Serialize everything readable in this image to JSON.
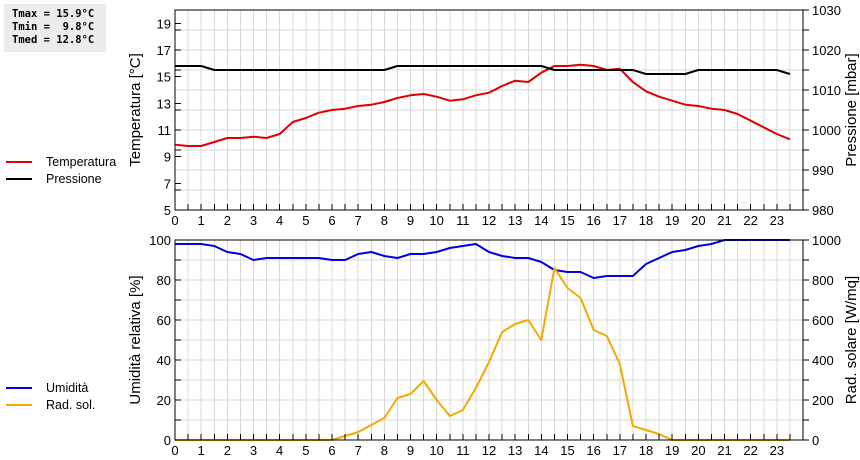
{
  "stats": {
    "lines": [
      "Tmax = 15.9°C",
      "Tmin =  9.8°C",
      "Tmed = 12.8°C"
    ]
  },
  "colors": {
    "temperature": "#e00000",
    "pressure": "#000000",
    "humidity": "#0000e0",
    "radiation": "#f5a800",
    "grid": "#d8d8d8"
  },
  "chart_data": [
    {
      "type": "line",
      "title": "",
      "xlabel": "",
      "ylabel": "Temperatura [°C]",
      "y2label": "Pressione [mbar]",
      "xlim": [
        0,
        24
      ],
      "ylim": [
        5,
        20
      ],
      "y2lim": [
        980,
        1030
      ],
      "grid": true,
      "legend_position": "left",
      "x_ticks": [
        "0",
        "1",
        "2",
        "3",
        "4",
        "5",
        "6",
        "7",
        "8",
        "9",
        "10",
        "11",
        "12",
        "13",
        "14",
        "15",
        "16",
        "17",
        "18",
        "19",
        "20",
        "21",
        "22",
        "23"
      ],
      "y_ticks": [
        "5",
        "7",
        "9",
        "11",
        "13",
        "15",
        "17",
        "19"
      ],
      "y2_ticks": [
        "980",
        "990",
        "1000",
        "1010",
        "1020",
        "1030"
      ],
      "x": [
        0,
        0.5,
        1,
        1.5,
        2,
        2.5,
        3,
        3.5,
        4,
        4.5,
        5,
        5.5,
        6,
        6.5,
        7,
        7.5,
        8,
        8.5,
        9,
        9.5,
        10,
        10.5,
        11,
        11.5,
        12,
        12.5,
        13,
        13.5,
        14,
        14.5,
        15,
        15.5,
        16,
        16.5,
        17,
        17.5,
        18,
        18.5,
        19,
        19.5,
        20,
        20.5,
        21,
        21.5,
        22,
        22.5,
        23,
        23.5
      ],
      "series": [
        {
          "name": "Temperatura",
          "axis": "left",
          "color": "#e00000",
          "values": [
            9.9,
            9.8,
            9.8,
            10.1,
            10.4,
            10.4,
            10.5,
            10.4,
            10.7,
            11.6,
            11.9,
            12.3,
            12.5,
            12.6,
            12.8,
            12.9,
            13.1,
            13.4,
            13.6,
            13.7,
            13.5,
            13.2,
            13.3,
            13.6,
            13.8,
            14.3,
            14.7,
            14.6,
            15.3,
            15.8,
            15.8,
            15.9,
            15.8,
            15.5,
            15.6,
            14.6,
            13.9,
            13.5,
            13.2,
            12.9,
            12.8,
            12.6,
            12.5,
            12.2,
            11.7,
            11.2,
            10.7,
            10.3
          ]
        },
        {
          "name": "Pressione",
          "axis": "right",
          "color": "#000000",
          "values": [
            1016,
            1016,
            1016,
            1015,
            1015,
            1015,
            1015,
            1015,
            1015,
            1015,
            1015,
            1015,
            1015,
            1015,
            1015,
            1015,
            1015,
            1016,
            1016,
            1016,
            1016,
            1016,
            1016,
            1016,
            1016,
            1016,
            1016,
            1016,
            1016,
            1015,
            1015,
            1015,
            1015,
            1015,
            1015,
            1015,
            1014,
            1014,
            1014,
            1014,
            1015,
            1015,
            1015,
            1015,
            1015,
            1015,
            1015,
            1014
          ]
        }
      ]
    },
    {
      "type": "line",
      "title": "",
      "xlabel": "",
      "ylabel": "Umidità relativa [%]",
      "y2label": "Rad. solare [W/mq]",
      "xlim": [
        0,
        24
      ],
      "ylim": [
        0,
        100
      ],
      "y2lim": [
        0,
        1000
      ],
      "grid": true,
      "legend_position": "left",
      "x_ticks": [
        "0",
        "1",
        "2",
        "3",
        "4",
        "5",
        "6",
        "7",
        "8",
        "9",
        "10",
        "11",
        "12",
        "13",
        "14",
        "15",
        "16",
        "17",
        "18",
        "19",
        "20",
        "21",
        "22",
        "23"
      ],
      "y_ticks": [
        "0",
        "20",
        "40",
        "60",
        "80",
        "100"
      ],
      "y2_ticks": [
        "0",
        "200",
        "400",
        "600",
        "800",
        "1000"
      ],
      "x": [
        0,
        0.5,
        1,
        1.5,
        2,
        2.5,
        3,
        3.5,
        4,
        4.5,
        5,
        5.5,
        6,
        6.5,
        7,
        7.5,
        8,
        8.5,
        9,
        9.5,
        10,
        10.5,
        11,
        11.5,
        12,
        12.5,
        13,
        13.5,
        14,
        14.5,
        15,
        15.5,
        16,
        16.5,
        17,
        17.5,
        18,
        18.5,
        19,
        19.5,
        20,
        20.5,
        21,
        21.5,
        22,
        22.5,
        23,
        23.5
      ],
      "series": [
        {
          "name": "Umidità",
          "axis": "left",
          "color": "#0000e0",
          "values": [
            98,
            98,
            98,
            97,
            94,
            93,
            90,
            91,
            91,
            91,
            91,
            91,
            90,
            90,
            93,
            94,
            92,
            91,
            93,
            93,
            94,
            96,
            97,
            98,
            94,
            92,
            91,
            91,
            89,
            85,
            84,
            84,
            81,
            82,
            82,
            82,
            88,
            91,
            94,
            95,
            97,
            98,
            100,
            100,
            100,
            100,
            100,
            100
          ]
        },
        {
          "name": "Rad. sol.",
          "axis": "right",
          "color": "#f5a800",
          "values": [
            0,
            0,
            0,
            0,
            0,
            0,
            0,
            0,
            0,
            0,
            0,
            0,
            0,
            20,
            40,
            75,
            110,
            210,
            230,
            295,
            200,
            120,
            150,
            260,
            390,
            540,
            580,
            600,
            500,
            860,
            760,
            710,
            550,
            520,
            380,
            70,
            50,
            30,
            0,
            0,
            0,
            0,
            0,
            0,
            0,
            0,
            0,
            0
          ]
        }
      ]
    }
  ]
}
